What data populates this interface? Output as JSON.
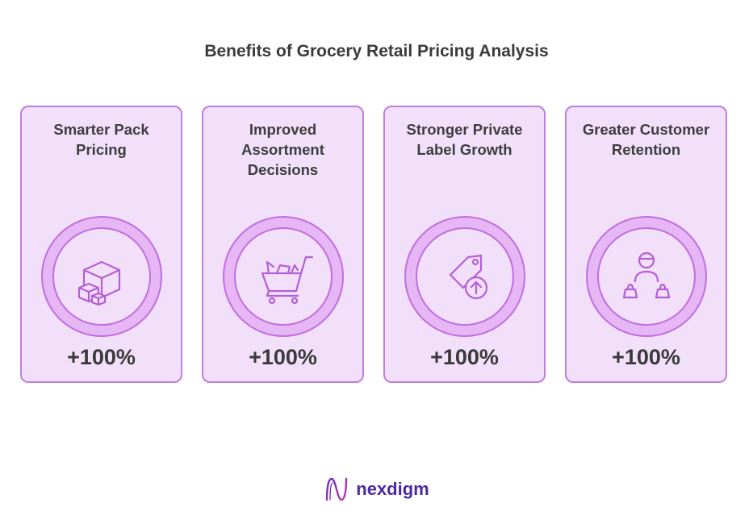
{
  "title": "Benefits of Grocery Retail Pricing Analysis",
  "cards": [
    {
      "label": "Smarter Pack Pricing",
      "value": "+100%",
      "icon": "boxes-icon"
    },
    {
      "label": "Improved Assortment Decisions",
      "value": "+100%",
      "icon": "shopping-cart-icon"
    },
    {
      "label": "Stronger Private Label Growth",
      "value": "+100%",
      "icon": "price-tag-up-icon"
    },
    {
      "label": "Greater Customer Retention",
      "value": "+100%",
      "icon": "customer-bags-icon"
    }
  ],
  "brand": {
    "name": "nexdigm",
    "icon": "nexdigm-logo-icon"
  },
  "colors": {
    "card_bg": "#f2dffa",
    "card_border": "#c07fe0",
    "ring": "#e6b6f5",
    "icon_stroke": "#b45fd6",
    "brand": "#4a2aa0"
  }
}
